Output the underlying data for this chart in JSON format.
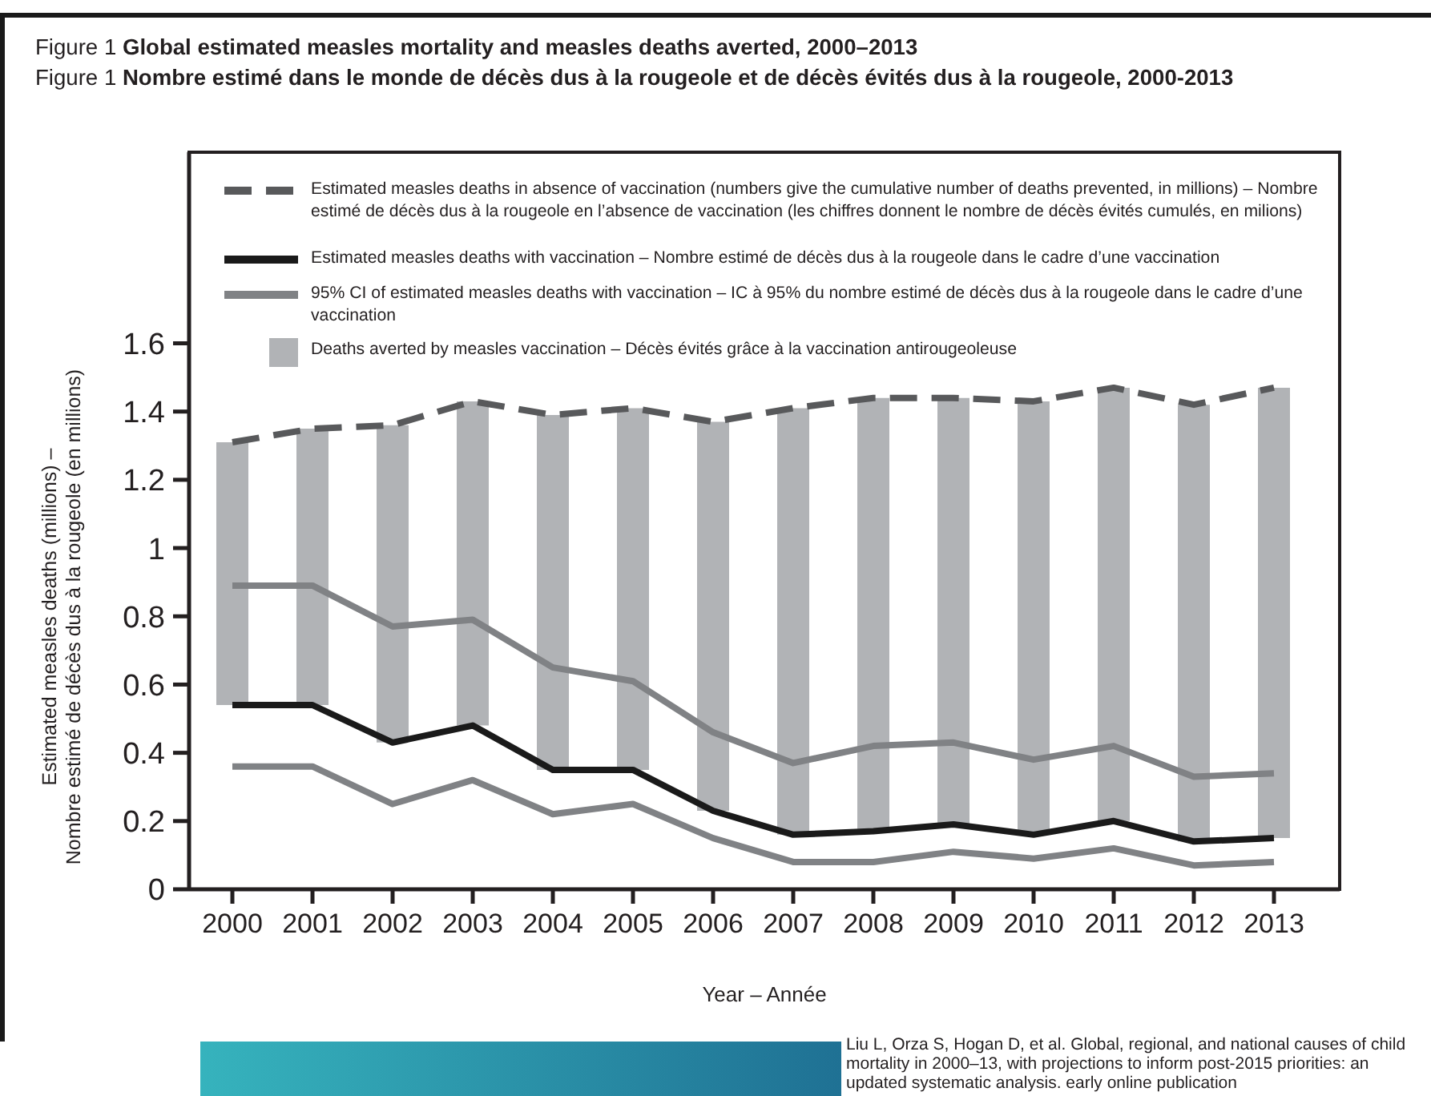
{
  "chart_data": {
    "type": "line",
    "title": "Figure 1 Global estimated measles mortality and measles deaths averted, 2000–2013",
    "subtitle": "Figure 1 Nombre estimé dans le monde de décès dus à la rougeole et de décès évités dus à la rougeole, 2000-2013",
    "xlabel": "Year – Année",
    "ylabel": "Estimated measles deaths (millions) –\nNombre estimé de décès dus à la rougeole (en millions)",
    "categories": [
      "2000",
      "2001",
      "2002",
      "2003",
      "2004",
      "2005",
      "2006",
      "2007",
      "2008",
      "2009",
      "2010",
      "2011",
      "2012",
      "2013"
    ],
    "ylim": [
      0,
      2.16
    ],
    "yticks": [
      0,
      0.2,
      0.4,
      0.6,
      0.8,
      1,
      1.2,
      1.4,
      1.6
    ],
    "legend": "top",
    "series": [
      {
        "name": "Estimated measles deaths in absence of vaccination (numbers give the cumulative number of deaths prevented, in millions) – Nombre estimé de décès dus à la rougeole en l’absence de vaccination (les chiffres donnent le nombre de décès évités cumulés, en milions)",
        "color": "#58595b",
        "line_style": "dashed",
        "values": [
          1.31,
          1.35,
          1.36,
          1.43,
          1.39,
          1.41,
          1.37,
          1.41,
          1.44,
          1.44,
          1.43,
          1.47,
          1.42,
          1.47
        ]
      },
      {
        "name": "Estimated measles deaths with vaccination – Nombre estimé de décès dus à la rougeole dans le cadre d’une vaccination",
        "color": "#1a1a1a",
        "values": [
          0.54,
          0.54,
          0.43,
          0.48,
          0.35,
          0.35,
          0.23,
          0.16,
          0.17,
          0.19,
          0.16,
          0.2,
          0.14,
          0.15
        ]
      },
      {
        "name": "95% CI of estimated measles deaths with vaccination – IC à 95% du nombre estimé de décès dus à la rougeole dans le cadre d’une vaccination",
        "color": "#808285",
        "values": [
          0.89,
          0.89,
          0.77,
          0.79,
          0.65,
          0.61,
          0.46,
          0.37,
          0.42,
          0.43,
          0.38,
          0.42,
          0.33,
          0.34
        ]
      },
      {
        "color": "#808285",
        "values": [
          0.36,
          0.36,
          0.25,
          0.32,
          0.22,
          0.25,
          0.15,
          0.08,
          0.08,
          0.11,
          0.09,
          0.12,
          0.07,
          0.08
        ]
      },
      {
        "type": "bar",
        "name": "Deaths averted by measles vaccination – Décès évités grâce à la vaccination antirougeoleuse",
        "color": "#b1b3b6",
        "base": [
          0.54,
          0.54,
          0.43,
          0.48,
          0.35,
          0.35,
          0.23,
          0.16,
          0.17,
          0.19,
          0.16,
          0.2,
          0.14,
          0.15
        ],
        "values": [
          0.77,
          0.81,
          0.93,
          0.95,
          1.04,
          1.06,
          1.14,
          1.25,
          1.27,
          1.25,
          1.27,
          1.27,
          1.28,
          1.32
        ]
      }
    ],
    "annotations": [
      "Liu L, Orza S, Hogan D, et al. Global, regional, and national causes of child mortality in 2000–13, with projections to inform post-2015 priorities: an updated systematic analysis. early online publication"
    ]
  }
}
